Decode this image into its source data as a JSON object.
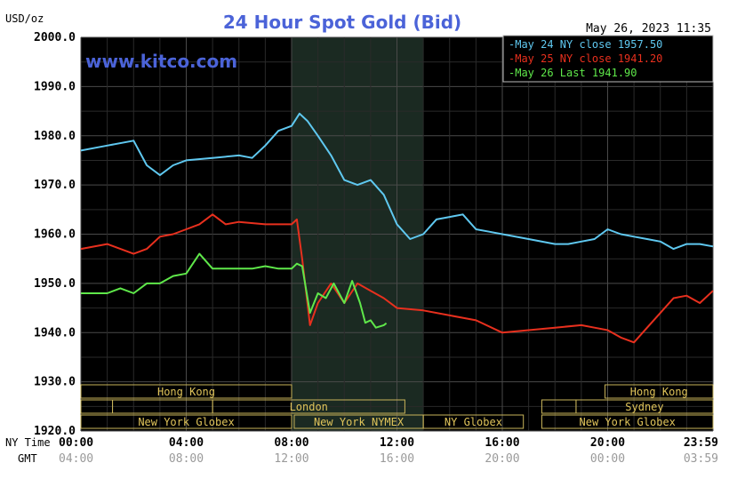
{
  "chart_data": {
    "type": "line",
    "title": "24 Hour Spot Gold (Bid)",
    "subtitle": "www.kitco.com",
    "ylabel": "USD/oz",
    "timestamp": "May 26, 2023 11:35",
    "ylim": [
      1920,
      2000
    ],
    "yticks": [
      "2000.0",
      "1990.0",
      "1980.0",
      "1970.0",
      "1960.0",
      "1950.0",
      "1940.0",
      "1930.0",
      "1920.0"
    ],
    "xlim": [
      0,
      24
    ],
    "x_axis_ny_label": "NY Time",
    "x_axis_gmt_label": "GMT",
    "x_ticks_ny": [
      "00:00",
      "04:00",
      "08:00",
      "12:00",
      "16:00",
      "20:00",
      "23:59"
    ],
    "x_ticks_gmt": [
      "04:00",
      "08:00",
      "12:00",
      "16:00",
      "20:00",
      "00:00",
      "03:59"
    ],
    "x_tick_hours": [
      0,
      4,
      8,
      12,
      16,
      20,
      23.98
    ],
    "legend_position": "top-right",
    "shaded_region": [
      8,
      13
    ],
    "grid": true,
    "series": [
      {
        "name": "May 24 NY close 1957.50",
        "color": "#5fc8f0",
        "x": [
          0,
          1,
          2,
          2.5,
          3,
          3.5,
          4,
          5,
          6,
          6.5,
          7,
          7.5,
          8,
          8.3,
          8.6,
          9,
          9.5,
          10,
          10.5,
          11,
          11.5,
          12,
          12.5,
          13,
          13.5,
          14,
          14.5,
          15,
          15.5,
          16,
          17,
          18,
          18.5,
          19,
          19.5,
          20,
          20.5,
          21,
          21.5,
          22,
          22.5,
          23,
          23.5,
          24
        ],
        "values": [
          1977,
          1978,
          1979,
          1974,
          1972,
          1974,
          1975,
          1975.5,
          1976,
          1975.5,
          1978,
          1981,
          1982,
          1984.5,
          1983,
          1980,
          1976,
          1971,
          1970,
          1971,
          1968,
          1962,
          1959,
          1960,
          1963,
          1963.5,
          1964,
          1961,
          1960.5,
          1960,
          1959,
          1958,
          1958,
          1958.5,
          1959,
          1961,
          1960,
          1959.5,
          1959,
          1958.5,
          1957,
          1958,
          1958,
          1957.5
        ]
      },
      {
        "name": "May 25 NY close 1941.20",
        "color": "#e8301e",
        "x": [
          0,
          1,
          2,
          2.5,
          3,
          3.5,
          4,
          4.5,
          5,
          5.5,
          6,
          7,
          8,
          8.2,
          8.4,
          8.7,
          9,
          9.5,
          10,
          10.5,
          11,
          11.5,
          12,
          13,
          14,
          15,
          16,
          17,
          18,
          19,
          19.5,
          20,
          20.5,
          21,
          21.5,
          22,
          22.5,
          23,
          23.5,
          24
        ],
        "values": [
          1957,
          1958,
          1956,
          1957,
          1959.5,
          1960,
          1961,
          1962,
          1964,
          1962,
          1962.5,
          1962,
          1962,
          1963,
          1955,
          1941.5,
          1946,
          1950,
          1946,
          1950,
          1948.5,
          1947,
          1945,
          1944.5,
          1943.5,
          1942.5,
          1940,
          1940.5,
          1941,
          1941.5,
          1941,
          1940.5,
          1939,
          1938,
          1941,
          1944,
          1947,
          1947.5,
          1946,
          1948.5
        ]
      },
      {
        "name": "May 26 Last 1941.90",
        "color": "#5fe84a",
        "x": [
          0,
          0.5,
          1,
          1.5,
          2,
          2.5,
          3,
          3.5,
          4,
          4.5,
          5,
          5.5,
          6,
          6.5,
          7,
          7.5,
          8,
          8.2,
          8.4,
          8.7,
          9,
          9.3,
          9.6,
          10,
          10.3,
          10.6,
          10.8,
          11,
          11.2,
          11.5,
          11.6
        ],
        "values": [
          1948,
          1948,
          1948,
          1949,
          1948,
          1950,
          1950,
          1951.5,
          1952,
          1956,
          1953,
          1953,
          1953,
          1953,
          1953.5,
          1953,
          1953,
          1954,
          1953.5,
          1944,
          1948,
          1947,
          1950,
          1946,
          1950.5,
          1946,
          1942,
          1942.5,
          1941,
          1941.5,
          1941.9
        ]
      }
    ],
    "market_sessions": [
      {
        "label": "Hong Kong",
        "row": 1,
        "start": 0,
        "end": 8
      },
      {
        "label": "",
        "row": 2,
        "start": 0,
        "end": 1.2
      },
      {
        "label": "",
        "row": 2,
        "start": 1.2,
        "end": 5
      },
      {
        "label": "London",
        "row": 2,
        "start": 5,
        "end": 12.3
      },
      {
        "label": "New York Globex",
        "row": 3,
        "start": 0,
        "end": 8
      },
      {
        "label": "New York NYMEX",
        "row": 3,
        "start": 8.1,
        "end": 13
      },
      {
        "label": "NY Globex",
        "row": 3,
        "start": 13,
        "end": 16.8
      },
      {
        "label": "Hong Kong",
        "row": 1,
        "start": 19.9,
        "end": 24
      },
      {
        "label": "Sydney",
        "row": 2,
        "start": 18.8,
        "end": 24
      },
      {
        "label": "",
        "row": 2,
        "start": 17.5,
        "end": 18.8
      },
      {
        "label": "New York Globex",
        "row": 3,
        "start": 17.5,
        "end": 24
      }
    ]
  }
}
